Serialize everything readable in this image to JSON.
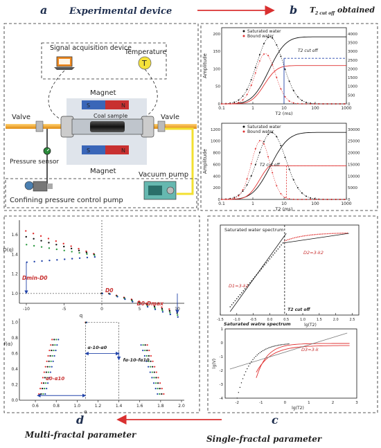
{
  "headers": {
    "a": "a",
    "b": "b",
    "c": "c",
    "d": "d",
    "top_caption": "Experimental device",
    "b_caption_main": "T",
    "b_caption_sub": "2 cut off",
    "b_caption_rest": "obtained",
    "bottom_left_caption": "Multi-fractal parameter",
    "bottom_right_caption": "Single-fractal parameter"
  },
  "device": {
    "signal": "Signal acquisition device",
    "temperature": "Temperature",
    "temp_symbol": "T",
    "magnet_top": "Magnet",
    "magnet_bottom": "Magnet",
    "coal_sample": "Coal sample",
    "valve_left": "Valve",
    "valve_right": "Vavle",
    "pressure_sensor": "Pressure sensor",
    "vacuum_pump": "Vacuum pump",
    "confining_pump": "Confining pressure control pump",
    "pole_s": "S",
    "pole_n": "N"
  },
  "panel_b": {
    "top": {
      "legend": [
        "Saturated water",
        "Bound water"
      ],
      "ylabel": "Amplitude",
      "xlabel": "T2 (ms)",
      "yticks_left": [
        "0",
        "50",
        "100",
        "150",
        "200"
      ],
      "yticks_right": [
        "0",
        "500",
        "1000",
        "1500",
        "2000",
        "2500",
        "3000",
        "3500",
        "4000"
      ],
      "xticks": [
        "0.1",
        "1",
        "10",
        "100",
        "1000"
      ],
      "annotation": "T2 cut off"
    },
    "bottom": {
      "legend": [
        "Saturated water",
        "Bound water"
      ],
      "ylabel": "Amplitude",
      "xlabel": "T2 (ms)",
      "yticks_left": [
        "0",
        "200",
        "400",
        "600",
        "800",
        "1000",
        "1200"
      ],
      "yticks_right": [
        "0",
        "5000",
        "10000",
        "15000",
        "20000",
        "25000",
        "30000"
      ],
      "xticks": [
        "0.1",
        "1",
        "10",
        "100",
        "1000"
      ],
      "annotation": "T2 cut off"
    }
  },
  "panel_c": {
    "top": {
      "title": "Saturated water spectrum",
      "d1": "D1=3-k1",
      "d2": "D2=3-k2",
      "cutoff": "T2 cut off",
      "xlabel": "lg(T2)",
      "xticks": [
        "-1.5",
        "-1.0",
        "-0.5",
        "0.0",
        "0.5",
        "1.0",
        "1.5",
        "2.0",
        "2.5"
      ]
    },
    "bottom": {
      "title": "Saturated watre spectrum",
      "d3": "D3=3-k",
      "ylabel": "lg(V)",
      "xlabel": "lg(T2)",
      "xticks": [
        "-2",
        "-1",
        "0",
        "1",
        "2",
        "3"
      ],
      "yticks": [
        "1",
        "0",
        "-1",
        "-2",
        "-3",
        "-4"
      ]
    }
  },
  "panel_d": {
    "top": {
      "ylabel": "D(q)",
      "xlabel": "q",
      "xticks": [
        "-10",
        "-5",
        "0",
        "5",
        "10"
      ],
      "yticks": [
        "1.0",
        "1.2",
        "1.4",
        "1.6"
      ],
      "ann_left": "Dmin-D0",
      "ann_mid": "D0",
      "ann_right": "D0-Dmax"
    },
    "bottom": {
      "ylabel": "f(α)",
      "xlabel": "α",
      "xticks": [
        "0.6",
        "0.8",
        "1.0",
        "1.2",
        "1.4",
        "1.6",
        "1.8",
        "2.0"
      ],
      "yticks": [
        "0.0",
        "0.2",
        "0.4",
        "0.6",
        "0.8",
        "1.0"
      ],
      "ann_left": "α0-α10",
      "ann_mid": "α-10-α0",
      "ann_right": "fα-10-fα10"
    }
  },
  "colors": {
    "title": "#1f2f4f",
    "arrow": "#d93030",
    "black_series": "#111111",
    "red_series": "#e03030",
    "blue_series": "#2244aa",
    "green_series": "#2a9a40",
    "magnet_blue": "#3a66b8",
    "magnet_red": "#c83030",
    "pipe": "#f2a020",
    "vacuum_line": "#f3e030"
  }
}
